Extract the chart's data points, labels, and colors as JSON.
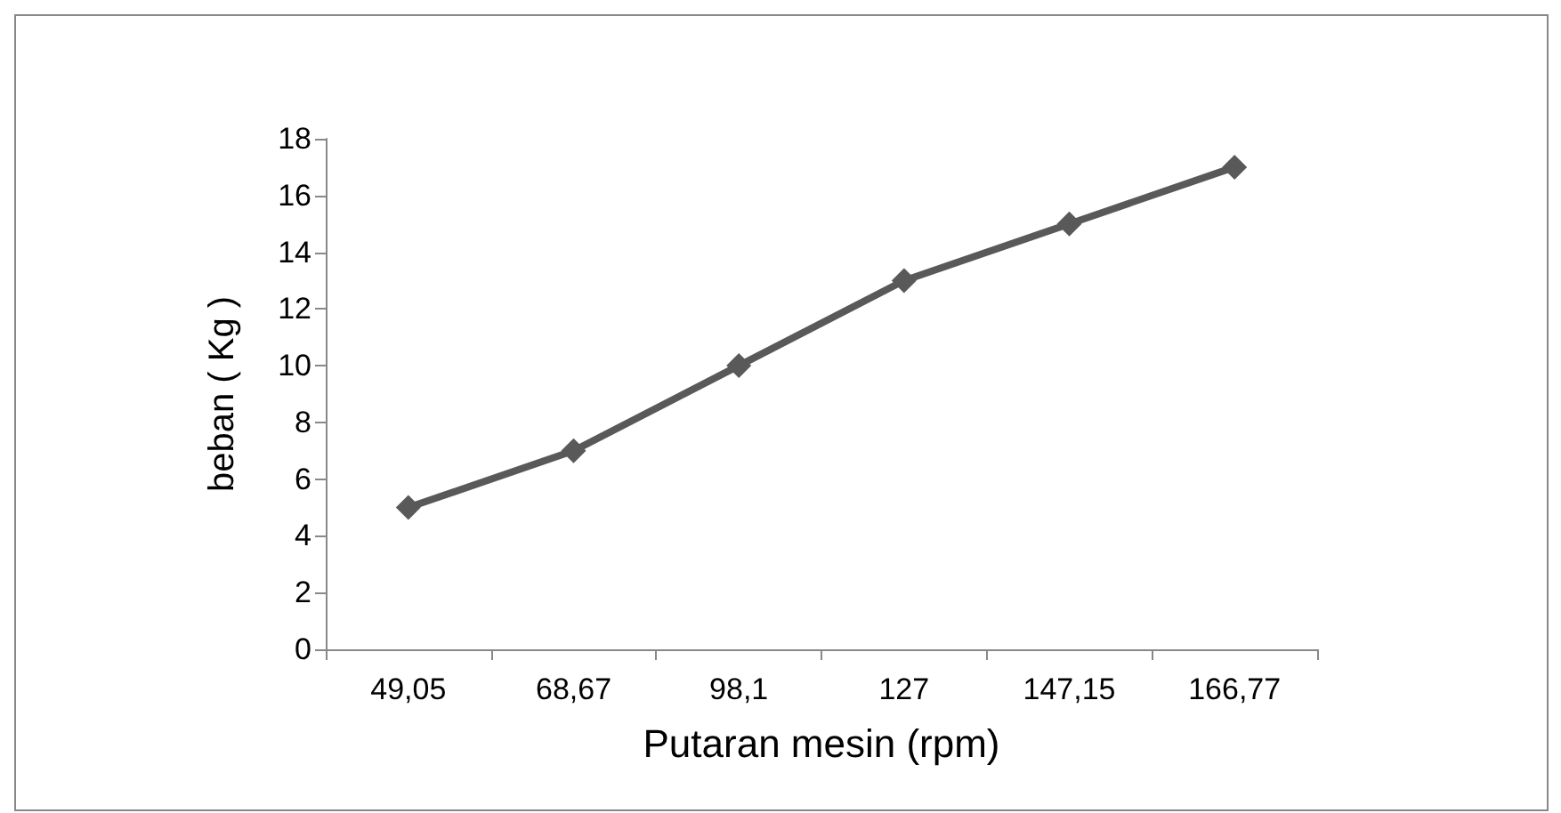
{
  "chart_data": {
    "type": "line",
    "xlabel": "Putaran mesin (rpm)",
    "ylabel": "beban ( Kg )",
    "categories": [
      "49,05",
      "68,67",
      "98,1",
      "127",
      "147,15",
      "166,77"
    ],
    "series": [
      {
        "color": "#595959",
        "values": [
          5,
          7,
          10,
          13,
          15,
          17
        ]
      }
    ],
    "ylim": [
      0,
      18
    ],
    "yticks": [
      0,
      2,
      4,
      6,
      8,
      10,
      12,
      14,
      16,
      18
    ],
    "grid": false,
    "marker": "diamond",
    "line_style": "solid"
  }
}
